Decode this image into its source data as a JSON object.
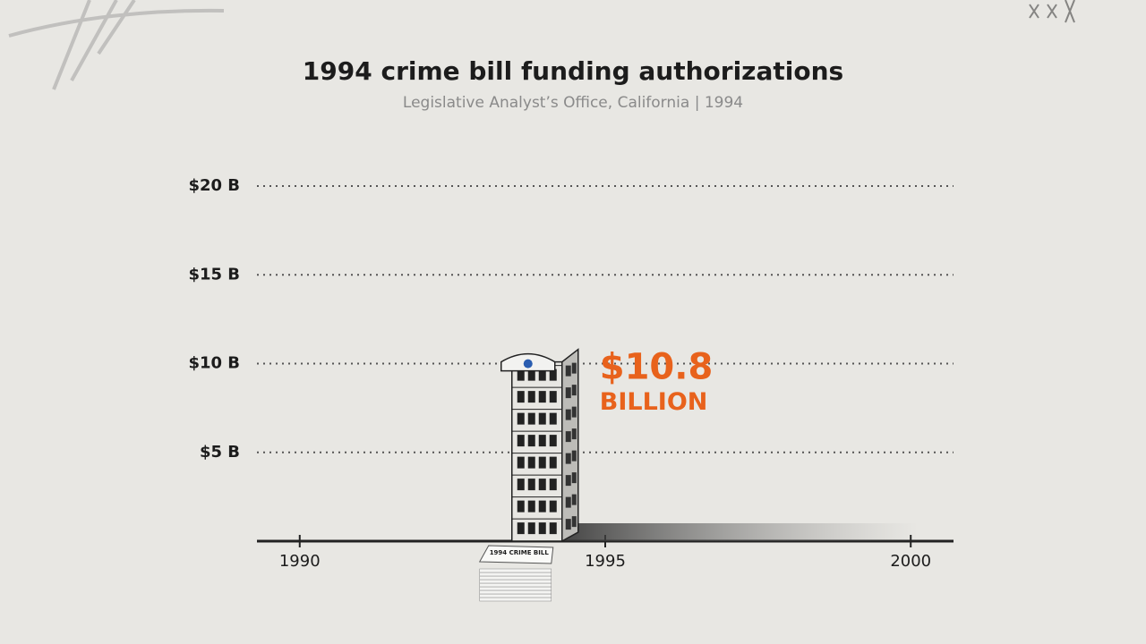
{
  "chart_data": {
    "type": "bar",
    "title": "1994 crime bill funding authorizations",
    "subtitle": "Legislative Analyst’s Office, California | 1994",
    "x": [
      1994
    ],
    "values": [
      10.8
    ],
    "value_labels": [
      "$10.8"
    ],
    "annotation": "BILLION",
    "stack_label": "1994 CRIME BILL",
    "color": "#e8e7e3",
    "label_color": "#e8621c",
    "xlim": [
      1989.3,
      2000.7
    ],
    "xticks": [
      1990,
      1995,
      2000
    ],
    "ylim": [
      0,
      20
    ],
    "yticks": [
      {
        "value": 5,
        "label": "$5 B"
      },
      {
        "value": 10,
        "label": "$10 B"
      },
      {
        "value": 15,
        "label": "$15 B"
      },
      {
        "value": 20,
        "label": "$20 B"
      }
    ],
    "grid": true
  }
}
